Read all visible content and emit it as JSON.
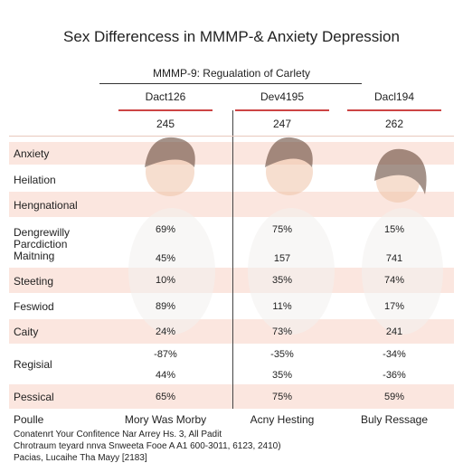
{
  "title": "Sex Differencess in MMMP-& Anxiety Depression",
  "subtitle": "MMMP-9: Regualation of Carlety",
  "columns": [
    "Dact126",
    "Dev4195",
    "Dacl194"
  ],
  "counts": [
    "245",
    "247",
    "262"
  ],
  "rows": [
    {
      "label": [
        "Anxiety"
      ],
      "lines": []
    },
    {
      "label": [
        "Heilation"
      ],
      "lines": []
    },
    {
      "label": [
        "Hengnational"
      ],
      "lines": []
    },
    {
      "label": [
        "Dengrewilly",
        "Parcdiction",
        "Maitning"
      ],
      "lines": [
        [
          "69%",
          "75%",
          "15%"
        ],
        [
          "45%",
          "157",
          "741"
        ]
      ]
    },
    {
      "label": [
        "Steeting"
      ],
      "lines": [
        [
          "10%",
          "35%",
          "74%"
        ]
      ]
    },
    {
      "label": [
        "Feswiod"
      ],
      "lines": [
        [
          "89%",
          "11%",
          "17%"
        ]
      ]
    },
    {
      "label": [
        "Caity"
      ],
      "lines": [
        [
          "24%",
          "73%",
          "241"
        ]
      ]
    },
    {
      "label": [
        "Regisial"
      ],
      "lines": [
        [
          "-87%",
          "-35%",
          "-34%"
        ],
        [
          "44%",
          "35%",
          "-36%"
        ]
      ]
    },
    {
      "label": [
        "Pessical"
      ],
      "lines": [
        [
          "65%",
          "75%",
          "59%"
        ]
      ]
    }
  ],
  "footer": {
    "label": "Poulle",
    "cells": [
      "Mory Was Morby",
      "Acny Hesting",
      "Buly Ressage"
    ]
  },
  "notes": [
    "Conatenrt Your Confitence Nar Arrey Hs. 3, All Padit",
    "Chrotraum teyard nnva Snweeta Fooe A A1 600-3011, 6123, 2410)",
    "Pacias, Lucaihe Tha Mayy [2183]"
  ]
}
